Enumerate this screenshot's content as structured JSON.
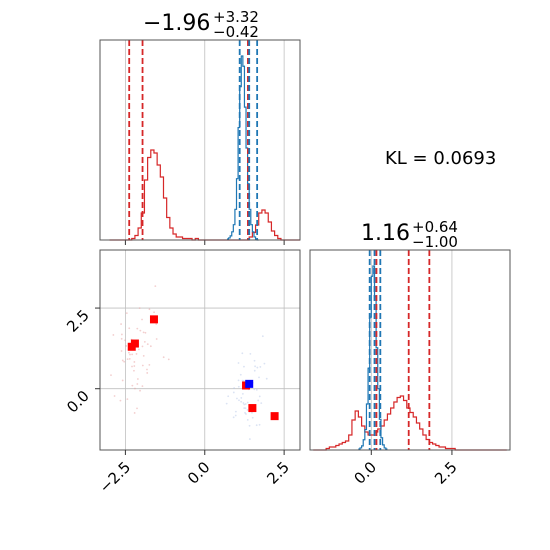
{
  "chart_data": {
    "type": "corner",
    "kl_label": "KL = 0.0693",
    "colors": {
      "red": "#d62728",
      "blue": "#1f77b4",
      "green": "#2ca02c",
      "red_fill_light": "#f2a7a8",
      "red_fill_dark": "#d62728"
    },
    "params": [
      {
        "title": {
          "main": "−1.96",
          "upper": "+3.32",
          "lower": "−0.42"
        },
        "axis_range": [
          -3.3,
          3.0
        ],
        "tick_values": [
          -2.5,
          0.0,
          2.5
        ],
        "tick_labels": [
          "−2.5",
          "0.0",
          "2.5"
        ],
        "red_quantiles": [
          -2.38,
          -1.96,
          1.36
        ],
        "blue_quantiles": [
          1.1,
          1.4,
          1.65
        ]
      },
      {
        "title": {
          "main": "1.16",
          "upper": "+0.64",
          "lower": "−1.00"
        },
        "axis_range": [
          -1.9,
          4.3
        ],
        "tick_values": [
          0.0,
          2.5
        ],
        "tick_labels": [
          "0.0",
          "2.5"
        ],
        "red_quantiles": [
          0.16,
          1.16,
          1.8
        ],
        "blue_quantiles": [
          -0.05,
          0.1,
          0.28
        ]
      }
    ],
    "scatter_range": {
      "x": [
        -3.3,
        3.0
      ],
      "y": [
        -1.9,
        4.3
      ],
      "y_ticks": [
        0.0,
        2.5
      ],
      "y_tick_labels": [
        "0.0",
        "2.5"
      ]
    },
    "marginal_red_param1": {
      "x_edges_start": -3.0,
      "bin_width": 0.1,
      "counts": [
        0,
        0,
        0,
        0,
        0,
        0,
        0,
        1,
        3,
        8,
        18,
        40,
        55,
        60,
        58,
        50,
        42,
        28,
        15,
        8,
        4,
        2,
        2,
        1,
        1,
        1,
        0,
        1,
        0,
        0,
        0,
        0,
        0,
        0,
        0,
        0,
        0,
        0,
        0,
        0,
        0,
        0,
        0,
        0,
        2,
        5,
        10,
        18,
        20,
        18,
        12,
        6,
        3,
        1,
        0,
        0,
        0,
        0,
        0,
        0
      ]
    },
    "marginal_blue_param1": {
      "x_edges_start": 0.7,
      "bin_width": 0.05,
      "counts": [
        1,
        2,
        4,
        8,
        15,
        30,
        60,
        110,
        150,
        180,
        170,
        130,
        90,
        55,
        30,
        15,
        8,
        3,
        1,
        0
      ]
    },
    "marginal_red_param2": {
      "x_edges_start": -1.8,
      "bin_width": 0.1,
      "counts": [
        0,
        0,
        0,
        0,
        1,
        2,
        2,
        3,
        4,
        5,
        6,
        10,
        20,
        26,
        22,
        16,
        12,
        10,
        10,
        12,
        14,
        16,
        20,
        24,
        28,
        32,
        35,
        36,
        33,
        28,
        25,
        22,
        18,
        14,
        10,
        7,
        5,
        4,
        3,
        2,
        2,
        1,
        1,
        1,
        0,
        0,
        0,
        0,
        0,
        0,
        0,
        0,
        0,
        0,
        0,
        0,
        0,
        0,
        0,
        0
      ]
    },
    "marginal_blue_param2": {
      "x_edges_start": -0.4,
      "bin_width": 0.05,
      "counts": [
        1,
        2,
        4,
        10,
        20,
        45,
        80,
        130,
        170,
        180,
        150,
        100,
        60,
        30,
        12,
        5,
        2,
        1
      ]
    },
    "red_markers_2d": [
      [
        -1.6,
        2.15
      ],
      [
        -2.2,
        1.4
      ],
      [
        -2.3,
        1.3
      ],
      [
        1.5,
        -0.6
      ],
      [
        2.2,
        -0.85
      ],
      [
        1.3,
        0.1
      ]
    ],
    "blue_marker_2d": [
      1.4,
      0.15
    ],
    "red_blob_1": {
      "cx": -2.1,
      "cy": 1.3,
      "spread": [
        0.45,
        0.85
      ]
    },
    "red_blob_2": {
      "cx": 1.35,
      "cy": 0.0,
      "spread": [
        0.3,
        0.75
      ]
    },
    "green_blob": {
      "cx": 1.4,
      "cy": 0.1,
      "spread": [
        0.3,
        0.3
      ]
    }
  }
}
